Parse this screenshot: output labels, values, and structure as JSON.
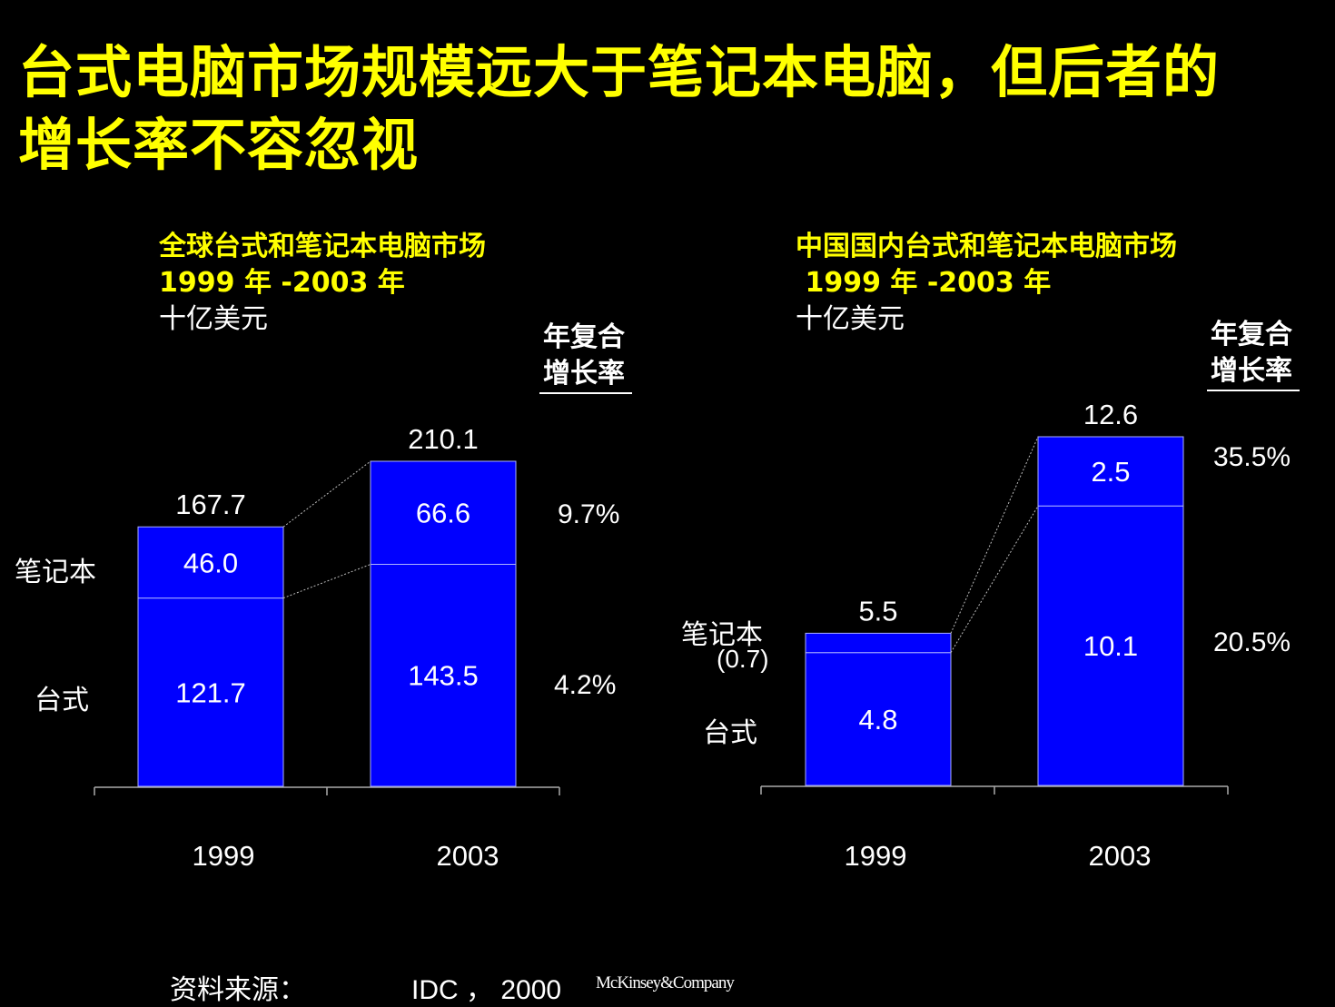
{
  "title_lines": [
    "台式电脑市场规模远大于笔记本电脑，但后者的",
    "增长率不容忽视"
  ],
  "charts_text": [
    {
      "subtitle1": "全球台式和笔记本电脑市场",
      "subtitle2": "1999 年 -2003 年",
      "unit": "十亿美元",
      "cagr_header1": "年复合",
      "cagr_header2": "增长率",
      "cagr_notebook": "9.7%",
      "cagr_desktop": "4.2%",
      "label_notebook": "笔记本",
      "label_desktop": "台式"
    },
    {
      "subtitle1": "中国国内台式和笔记本电脑市场",
      "subtitle2": " 1999 年 -2003 年",
      "unit": "十亿美元",
      "cagr_header1": "年复合",
      "cagr_header2": "增长率",
      "cagr_notebook": "35.5%",
      "cagr_desktop": "20.5%",
      "label_notebook": "笔记本",
      "label_notebook_value": "(0.7)",
      "label_desktop": "台式"
    }
  ],
  "chart_data": [
    {
      "type": "bar",
      "stacked": true,
      "categories": [
        "1999",
        "2003"
      ],
      "series": [
        {
          "name": "台式",
          "values": [
            121.7,
            143.5
          ]
        },
        {
          "name": "笔记本",
          "values": [
            46.0,
            66.6
          ]
        }
      ],
      "totals": [
        167.7,
        210.1
      ],
      "segment_labels": [
        [
          "121.7",
          "46.0"
        ],
        [
          "143.5",
          "66.6"
        ]
      ],
      "bar_color": "#0000ff",
      "ylim": [
        0,
        210.1
      ],
      "grid": false
    },
    {
      "type": "bar",
      "stacked": true,
      "categories": [
        "1999",
        "2003"
      ],
      "series": [
        {
          "name": "台式",
          "values": [
            4.8,
            10.1
          ]
        },
        {
          "name": "笔记本",
          "values": [
            0.7,
            2.5
          ]
        }
      ],
      "totals": [
        5.5,
        12.6
      ],
      "segment_labels": [
        [
          "4.8",
          ""
        ],
        [
          "10.1",
          "2.5"
        ]
      ],
      "bar_color": "#0000ff",
      "ylim": [
        0,
        12.6
      ],
      "grid": false
    }
  ],
  "footer": {
    "source_label": "资料来源：",
    "source_value": "IDC ， 2000",
    "logo": "McKinsey&Company"
  }
}
